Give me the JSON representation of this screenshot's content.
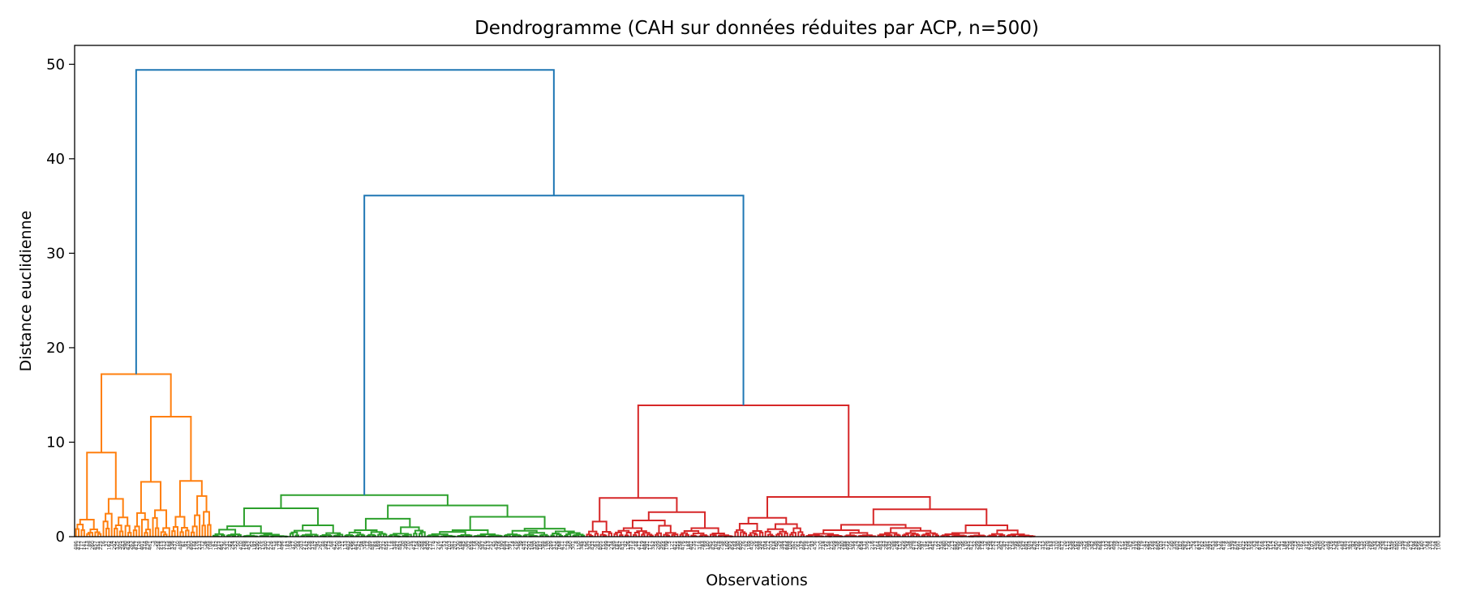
{
  "chart_data": {
    "type": "dendrogram",
    "title": "Dendrogramme (CAH sur données réduites par ACP, n=500)",
    "xlabel": "Observations",
    "ylabel": "Distance euclidienne",
    "ylim": [
      0,
      52
    ],
    "yticks": [
      0,
      10,
      20,
      30,
      40,
      50
    ],
    "grid": false,
    "colors": {
      "orange": "#ff7f0e",
      "green": "#2ca02c",
      "red": "#d62728",
      "blue": "#1f77b4"
    },
    "leaf_labels": [
      "486",
      "472",
      "177",
      "141",
      "113",
      "89",
      "260",
      "457",
      "351",
      "225",
      "16",
      "37",
      "162",
      "74",
      "292",
      "325",
      "305",
      "243",
      "390",
      "428",
      "263",
      "366",
      "417",
      "128",
      "401",
      "374",
      "239",
      "461",
      "3",
      "29",
      "258",
      "215",
      "313",
      "125",
      "148",
      "336",
      "437",
      "10",
      "449",
      "61",
      "91",
      "303",
      "480",
      "144",
      "176",
      "233",
      "372",
      "26",
      "395",
      "108",
      "41",
      "182",
      "217",
      "467",
      "236",
      "331",
      "82",
      "254",
      "353",
      "50",
      "410",
      "189",
      "129",
      "452",
      "62",
      "197",
      "290",
      "376",
      "155",
      "340",
      "271",
      "226",
      "415",
      "38",
      "123",
      "496",
      "11",
      "183",
      "59",
      "317",
      "360",
      "84",
      "203",
      "271",
      "142",
      "228",
      "378",
      "447",
      "95",
      "267",
      "48",
      "392",
      "173",
      "68",
      "421",
      "250",
      "319",
      "21",
      "133",
      "403",
      "286",
      "156",
      "441",
      "242",
      "94",
      "359",
      "12",
      "289",
      "481",
      "65",
      "169",
      "307",
      "232",
      "455",
      "71",
      "118",
      "348",
      "247",
      "493",
      "20",
      "399",
      "270",
      "35",
      "413",
      "154",
      "89",
      "288",
      "328",
      "430",
      "237",
      "178",
      "7",
      "276",
      "341",
      "53",
      "474",
      "103",
      "381",
      "207",
      "330",
      "148",
      "445",
      "86",
      "202",
      "458",
      "174",
      "30",
      "266",
      "387",
      "416",
      "113",
      "257",
      "45",
      "439",
      "316",
      "190",
      "484",
      "147",
      "391",
      "14",
      "276",
      "346",
      "39",
      "435",
      "222",
      "292",
      "104",
      "320",
      "465",
      "187",
      "388",
      "56",
      "120",
      "249",
      "311",
      "426",
      "168",
      "471",
      "221",
      "79",
      "360",
      "301",
      "8",
      "150",
      "385",
      "25",
      "196",
      "302",
      "437",
      "67",
      "283",
      "405",
      "151",
      "499",
      "47",
      "234",
      "349",
      "181",
      "262",
      "431",
      "92",
      "126",
      "373",
      "218",
      "44",
      "411",
      "119",
      "484",
      "291",
      "171",
      "352",
      "55",
      "209",
      "366",
      "444",
      "199",
      "5",
      "121",
      "421",
      "355",
      "258",
      "476",
      "14",
      "184",
      "401",
      "235",
      "77",
      "318",
      "283",
      "69",
      "140",
      "365",
      "425",
      "102",
      "478",
      "258",
      "36",
      "160",
      "305",
      "454",
      "184",
      "230",
      "400",
      "276",
      "82",
      "149",
      "470",
      "26",
      "244",
      "398",
      "341",
      "104",
      "272",
      "203",
      "418",
      "160",
      "29",
      "384",
      "223",
      "444",
      "108",
      "362",
      "201",
      "61",
      "319",
      "466",
      "178",
      "251",
      "93",
      "436",
      "1",
      "320",
      "218",
      "97",
      "158",
      "275",
      "409",
      "58",
      "326",
      "240",
      "188",
      "495",
      "105",
      "344",
      "74",
      "262",
      "454",
      "131",
      "306",
      "4",
      "216",
      "377",
      "164",
      "483",
      "43",
      "282",
      "335",
      "206",
      "88",
      "424",
      "157",
      "229",
      "369",
      "34",
      "308",
      "479",
      "112",
      "260",
      "397",
      "81",
      "145",
      "318",
      "441",
      "22",
      "197",
      "358",
      "280",
      "130",
      "64",
      "213",
      "487",
      "406",
      "336",
      "96",
      "170",
      "245",
      "412",
      "52",
      "299",
      "369",
      "178",
      "32",
      "436",
      "138",
      "252",
      "17",
      "304",
      "462",
      "87",
      "221",
      "375",
      "158",
      "395",
      "46",
      "268",
      "142",
      "491",
      "105",
      "342",
      "428",
      "191",
      "27",
      "313",
      "236",
      "419",
      "153",
      "75",
      "370",
      "288",
      "477",
      "20",
      "115",
      "238",
      "388",
      "167",
      "448",
      "56",
      "325",
      "204",
      "99",
      "382",
      "136",
      "299",
      "468",
      "13",
      "193",
      "244",
      "352",
      "409",
      "79",
      "275",
      "151",
      "435",
      "108",
      "62",
      "316",
      "232",
      "499",
      "179",
      "41",
      "287",
      "395",
      "148",
      "224",
      "460",
      "103",
      "331",
      "71",
      "256",
      "40",
      "356",
      "402",
      "187",
      "489",
      "267",
      "119",
      "345",
      "24",
      "213",
      "432",
      "162",
      "65",
      "381",
      "297",
      "453",
      "88",
      "137",
      "248",
      "414",
      "6",
      "186",
      "339",
      "274",
      "491",
      "101",
      "422",
      "235",
      "155",
      "358",
      "63",
      "278",
      "472",
      "168",
      "213",
      "393",
      "114",
      "312",
      "450",
      "241",
      "31",
      "184",
      "365",
      "128",
      "429",
      "73",
      "295",
      "181",
      "16",
      "371",
      "436",
      "107",
      "250",
      "329",
      "470",
      "200",
      "57",
      "408",
      "316",
      "134",
      "264",
      "19",
      "442",
      "185",
      "327",
      "383",
      "92",
      "495",
      "246",
      "135",
      "385",
      "70",
      "289",
      "166",
      "434",
      "52",
      "306",
      "238",
      "417",
      "117",
      "359",
      "205",
      "480",
      "10",
      "339",
      "277",
      "86",
      "413",
      "194",
      "248",
      "456",
      "140",
      "321",
      "44",
      "376",
      "172",
      "294",
      "100"
    ]
  }
}
